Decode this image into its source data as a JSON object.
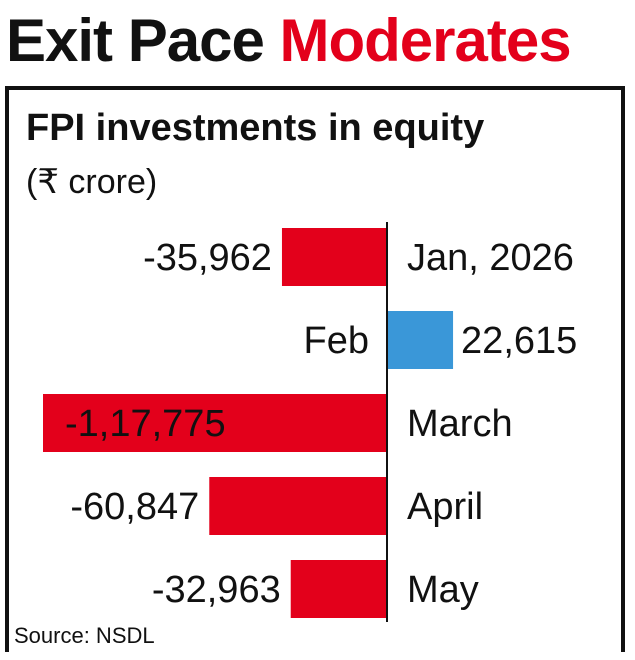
{
  "headline": {
    "part1": "Exit Pace",
    "part2": "Moderates"
  },
  "colors": {
    "negative": "#e3001b",
    "positive": "#3a97d8",
    "accent": "#e3001b",
    "axis": "#111111"
  },
  "chart_data": {
    "type": "bar",
    "orientation": "horizontal",
    "title": "FPI investments in equity",
    "unit": "(₹ crore)",
    "categories": [
      "Jan, 2026",
      "Feb",
      "March",
      "April",
      "May"
    ],
    "values": [
      -35962,
      22615,
      -117775,
      -60847,
      -32963
    ],
    "value_labels": [
      "-35,962",
      "22,615",
      "-1,17,775",
      "-60,847",
      "-32,963"
    ],
    "grid": false,
    "legend": "none"
  },
  "source": "Source: NSDL"
}
